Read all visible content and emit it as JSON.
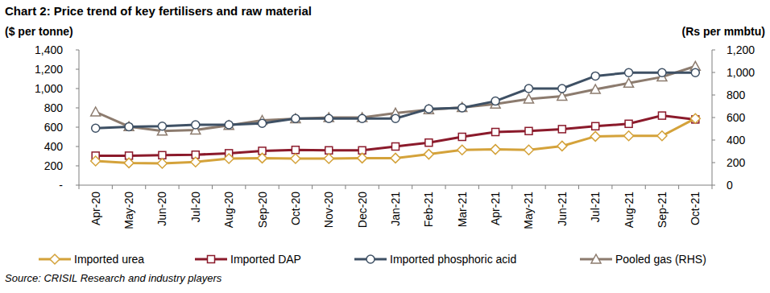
{
  "chart_data": {
    "type": "line",
    "title": "Chart 2: Price trend of key fertilisers and raw material",
    "y_label": "($ per tonne)",
    "y2_label": "(Rs per mmbtu)",
    "source": "Source: CRISIL Research and industry players",
    "categories": [
      "Apr-20",
      "May-20",
      "Jun-20",
      "Jul-20",
      "Aug-20",
      "Sep-20",
      "Oct-20",
      "Nov-20",
      "Dec-20",
      "Jan-21",
      "Feb-21",
      "Mar-21",
      "Apr-21",
      "May-21",
      "Jun-21",
      "Jul-21",
      "Aug-21",
      "Sep-21",
      "Oct-21"
    ],
    "series": [
      {
        "name": "Imported urea",
        "color": "#d4a23a",
        "marker": "diamond",
        "values": [
          250,
          230,
          225,
          240,
          275,
          280,
          275,
          275,
          280,
          280,
          320,
          365,
          370,
          365,
          405,
          505,
          510,
          510,
          690
        ]
      },
      {
        "name": "Imported DAP",
        "color": "#8b1a2b",
        "marker": "square",
        "values": [
          305,
          305,
          310,
          315,
          330,
          355,
          365,
          360,
          360,
          400,
          440,
          500,
          550,
          560,
          580,
          610,
          635,
          720,
          680
        ]
      },
      {
        "name": "Imported phosphoric acid",
        "color": "#3e5064",
        "marker": "circle",
        "values": [
          590,
          605,
          610,
          625,
          625,
          640,
          690,
          690,
          690,
          690,
          790,
          800,
          870,
          1000,
          1000,
          1130,
          1165,
          1165,
          1165
        ]
      },
      {
        "name": "Pooled gas (RHS)",
        "color": "#8c7b6e",
        "marker": "triangle",
        "axis": "y2",
        "values": [
          650,
          520,
          480,
          490,
          530,
          575,
          590,
          600,
          600,
          640,
          670,
          690,
          720,
          765,
          790,
          850,
          905,
          960,
          1055
        ]
      }
    ],
    "ylim": [
      0,
      1400
    ],
    "yticks": [
      {
        "value": 0,
        "label": "-"
      },
      200,
      400,
      600,
      800,
      {
        "value": 1000,
        "label": "1,000"
      },
      {
        "value": 1200,
        "label": "1,200"
      },
      {
        "value": 1400,
        "label": "1,400"
      }
    ],
    "y2lim": [
      0,
      1200
    ],
    "y2ticks": [
      0,
      200,
      400,
      600,
      800,
      {
        "value": 1000,
        "label": "1,000"
      },
      {
        "value": 1200,
        "label": "1,200"
      }
    ],
    "grid": false,
    "legend": "bottom"
  }
}
